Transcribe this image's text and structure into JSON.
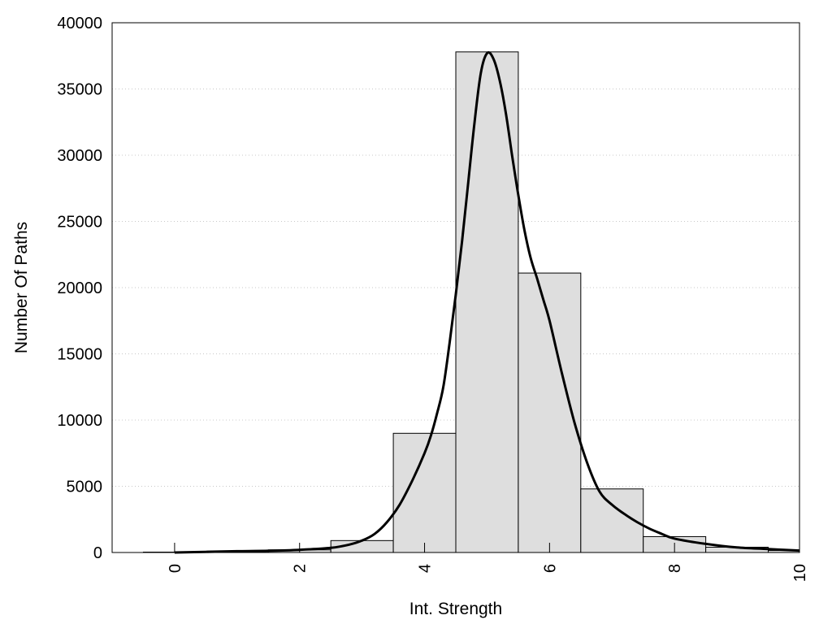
{
  "chart_data": {
    "type": "bar",
    "title": "",
    "xlabel": "Int. Strength",
    "ylabel": "Number Of Paths",
    "xlim": [
      -1,
      10
    ],
    "ylim": [
      0,
      40000
    ],
    "x_ticks": [
      "0",
      "2",
      "4",
      "6",
      "8",
      "10"
    ],
    "y_ticks": [
      "0",
      "5000",
      "10000",
      "15000",
      "20000",
      "25000",
      "30000",
      "35000",
      "40000"
    ],
    "grid": "horizontal dotted",
    "legend": "none",
    "bars": {
      "bin_centers": [
        0,
        1,
        2,
        3,
        4,
        5,
        6,
        7,
        8,
        9,
        10
      ],
      "bin_width": 1,
      "values": [
        30,
        80,
        200,
        900,
        9000,
        37800,
        21100,
        4800,
        1200,
        400,
        150
      ],
      "color": "#dedede"
    },
    "curve": {
      "x": [
        0,
        0.5,
        1,
        1.5,
        2,
        2.5,
        2.8,
        3.0,
        3.2,
        3.4,
        3.6,
        3.8,
        4.0,
        4.1,
        4.2,
        4.3,
        4.4,
        4.5,
        4.6,
        4.7,
        4.8,
        4.9,
        5.0,
        5.1,
        5.2,
        5.3,
        5.4,
        5.5,
        5.6,
        5.7,
        5.8,
        5.9,
        6.0,
        6.2,
        6.4,
        6.6,
        6.8,
        7.0,
        7.2,
        7.4,
        7.6,
        7.8,
        8.0,
        8.5,
        9.0,
        9.5,
        10
      ],
      "y": [
        0,
        50,
        100,
        130,
        200,
        350,
        600,
        900,
        1400,
        2300,
        3600,
        5400,
        7500,
        8800,
        10500,
        12500,
        15800,
        19500,
        23500,
        28000,
        32500,
        36200,
        37700,
        37300,
        35700,
        33200,
        30000,
        27000,
        24300,
        22200,
        20700,
        19100,
        17500,
        13500,
        9800,
        6800,
        4600,
        3600,
        2900,
        2300,
        1800,
        1400,
        1050,
        650,
        380,
        260,
        150
      ],
      "color": "#000000"
    }
  }
}
